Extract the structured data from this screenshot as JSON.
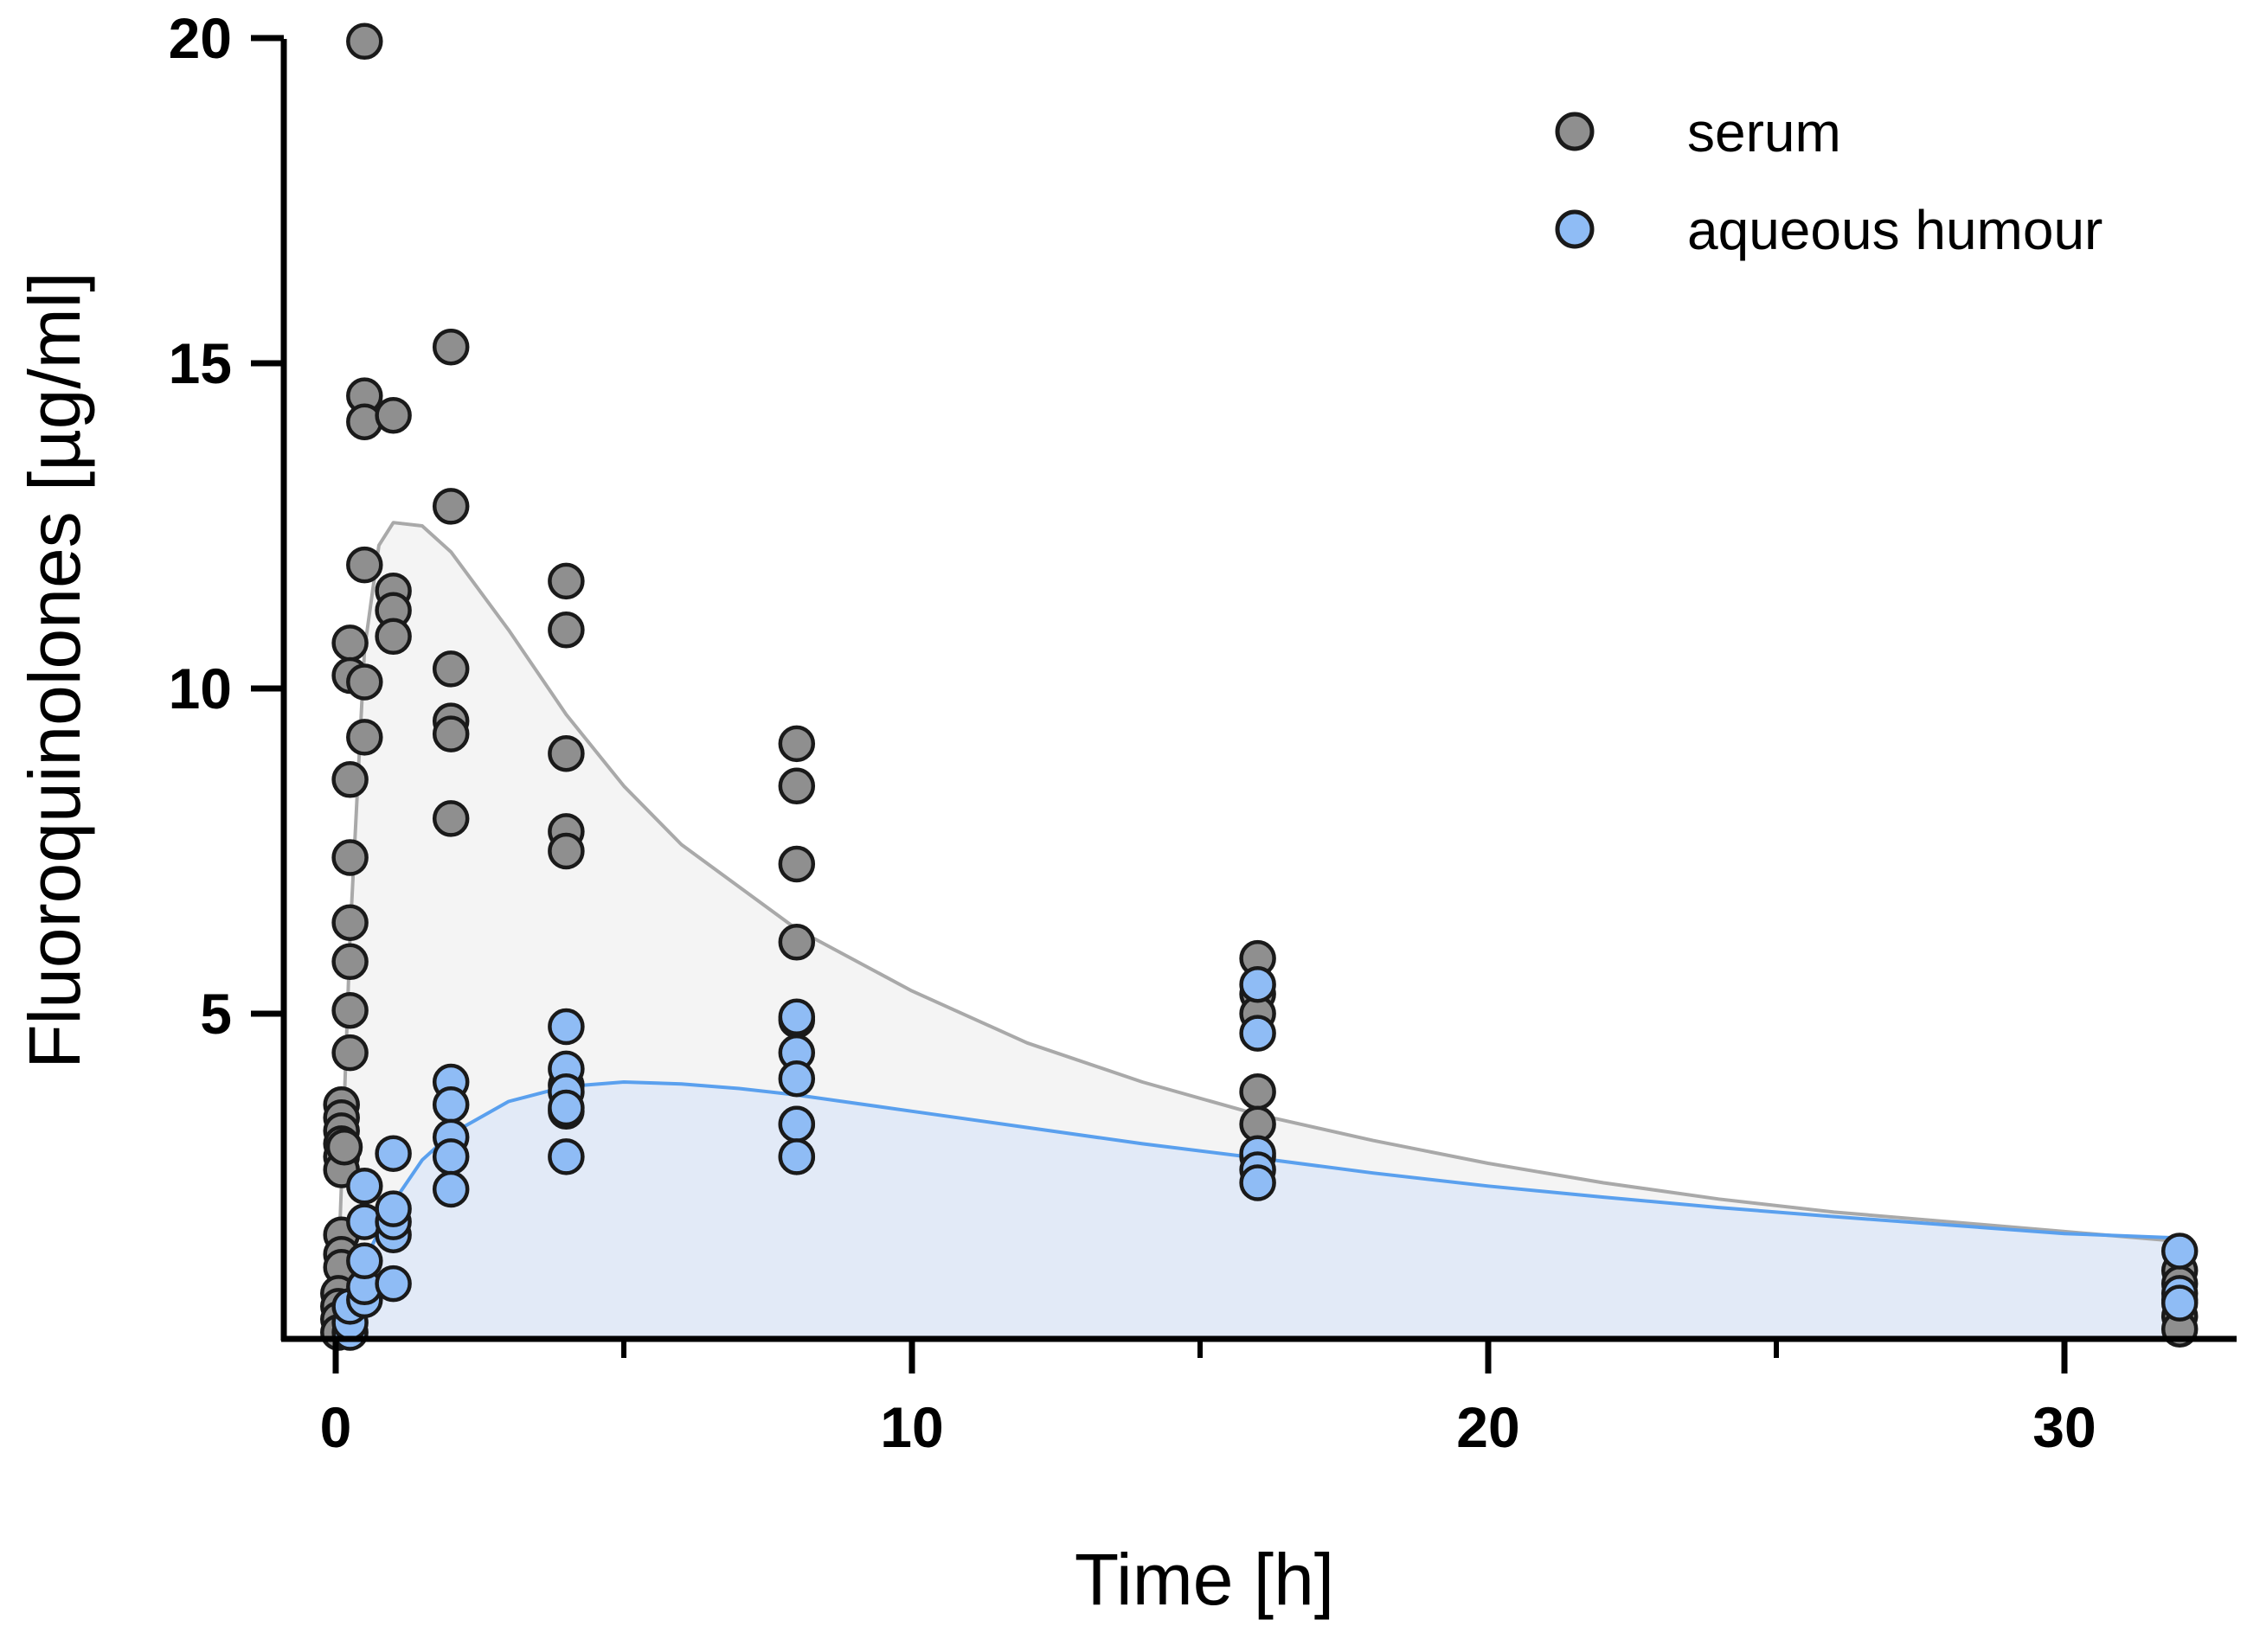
{
  "chart_data": {
    "type": "scatter",
    "title": "",
    "xlabel": "Time [h]",
    "ylabel": "Fluoroquinolones [µg/ml]",
    "xlim": [
      -1,
      33
    ],
    "ylim": [
      0,
      20
    ],
    "xticks": [
      0,
      10,
      20,
      30
    ],
    "xtick_labels": [
      "0",
      "10",
      "20",
      "30"
    ],
    "xminor": [
      5,
      15,
      25
    ],
    "yticks": [
      5,
      10,
      15,
      20
    ],
    "ytick_labels": [
      "5",
      "10",
      "15",
      "20"
    ],
    "grid": false,
    "legend_position": "top-right",
    "series": [
      {
        "name": "serum",
        "color": "#8f8f8f",
        "points": [
          [
            0.5,
            19.95
          ],
          [
            2.0,
            15.25
          ],
          [
            0.5,
            14.5
          ],
          [
            0.5,
            14.1
          ],
          [
            1.0,
            14.2
          ],
          [
            2.0,
            12.8
          ],
          [
            0.5,
            11.9
          ],
          [
            1.0,
            11.5
          ],
          [
            1.0,
            11.2
          ],
          [
            1.0,
            10.8
          ],
          [
            0.25,
            10.7
          ],
          [
            0.25,
            10.2
          ],
          [
            0.5,
            10.1
          ],
          [
            2.0,
            10.3
          ],
          [
            2.0,
            9.5
          ],
          [
            2.0,
            9.3
          ],
          [
            0.5,
            9.25
          ],
          [
            0.25,
            8.6
          ],
          [
            2.0,
            8.0
          ],
          [
            0.25,
            7.4
          ],
          [
            0.25,
            6.4
          ],
          [
            0.25,
            5.8
          ],
          [
            0.25,
            5.05
          ],
          [
            0.25,
            4.4
          ],
          [
            0.1,
            3.6
          ],
          [
            0.1,
            3.4
          ],
          [
            0.1,
            3.2
          ],
          [
            0.1,
            3.0
          ],
          [
            0.1,
            2.8
          ],
          [
            0.1,
            2.6
          ],
          [
            0.15,
            2.95
          ],
          [
            0.1,
            1.6
          ],
          [
            0.1,
            1.3
          ],
          [
            0.1,
            1.1
          ],
          [
            0.05,
            0.7
          ],
          [
            0.05,
            0.5
          ],
          [
            0.05,
            0.3
          ],
          [
            0.05,
            0.1
          ],
          [
            4.0,
            11.65
          ],
          [
            4.0,
            10.9
          ],
          [
            4.0,
            9.0
          ],
          [
            4.0,
            7.8
          ],
          [
            4.0,
            7.5
          ],
          [
            4.0,
            3.9
          ],
          [
            4.0,
            3.5
          ],
          [
            8.0,
            9.15
          ],
          [
            8.0,
            8.5
          ],
          [
            8.0,
            7.3
          ],
          [
            8.0,
            6.1
          ],
          [
            8.0,
            4.9
          ],
          [
            8.0,
            3.3
          ],
          [
            8.0,
            2.8
          ],
          [
            16.0,
            5.85
          ],
          [
            16.0,
            5.3
          ],
          [
            16.0,
            5.0
          ],
          [
            16.0,
            3.8
          ],
          [
            16.0,
            3.3
          ],
          [
            16.0,
            2.8
          ],
          [
            32.0,
            1.05
          ],
          [
            32.0,
            0.85
          ],
          [
            32.0,
            0.6
          ],
          [
            32.0,
            0.35
          ],
          [
            32.0,
            0.15
          ]
        ],
        "fit_curve": [
          [
            0.0,
            0.0
          ],
          [
            0.1,
            2.4
          ],
          [
            0.25,
            6.2
          ],
          [
            0.5,
            10.6
          ],
          [
            0.75,
            12.2
          ],
          [
            1.0,
            12.55
          ],
          [
            1.5,
            12.5
          ],
          [
            2.0,
            12.1
          ],
          [
            3.0,
            10.9
          ],
          [
            4.0,
            9.6
          ],
          [
            5.0,
            8.5
          ],
          [
            6.0,
            7.6
          ],
          [
            8.0,
            6.3
          ],
          [
            10.0,
            5.35
          ],
          [
            12.0,
            4.55
          ],
          [
            14.0,
            3.95
          ],
          [
            16.0,
            3.45
          ],
          [
            18.0,
            3.05
          ],
          [
            20.0,
            2.7
          ],
          [
            22.0,
            2.4
          ],
          [
            24.0,
            2.15
          ],
          [
            26.0,
            1.95
          ],
          [
            28.0,
            1.8
          ],
          [
            30.0,
            1.65
          ],
          [
            32.0,
            1.5
          ]
        ]
      },
      {
        "name": "aqueous humour",
        "color": "#8fbcf5",
        "points": [
          [
            0.25,
            0.1
          ],
          [
            0.25,
            0.25
          ],
          [
            0.25,
            0.5
          ],
          [
            0.5,
            0.6
          ],
          [
            0.5,
            0.8
          ],
          [
            0.5,
            1.2
          ],
          [
            0.5,
            1.8
          ],
          [
            0.5,
            2.35
          ],
          [
            1.0,
            0.85
          ],
          [
            1.0,
            1.6
          ],
          [
            1.0,
            1.8
          ],
          [
            1.0,
            2.0
          ],
          [
            1.0,
            2.85
          ],
          [
            2.0,
            3.95
          ],
          [
            2.0,
            3.6
          ],
          [
            2.0,
            3.1
          ],
          [
            2.0,
            2.8
          ],
          [
            2.0,
            2.3
          ],
          [
            4.0,
            4.8
          ],
          [
            4.0,
            4.15
          ],
          [
            4.0,
            3.8
          ],
          [
            4.0,
            3.55
          ],
          [
            4.0,
            2.8
          ],
          [
            8.0,
            4.95
          ],
          [
            8.0,
            4.4
          ],
          [
            8.0,
            4.0
          ],
          [
            8.0,
            3.3
          ],
          [
            8.0,
            2.8
          ],
          [
            16.0,
            5.45
          ],
          [
            16.0,
            4.7
          ],
          [
            16.0,
            2.85
          ],
          [
            16.0,
            2.6
          ],
          [
            16.0,
            2.4
          ],
          [
            32.0,
            1.35
          ],
          [
            32.0,
            0.7
          ],
          [
            32.0,
            0.55
          ]
        ],
        "fit_curve": [
          [
            0.0,
            0.0
          ],
          [
            0.25,
            0.6
          ],
          [
            0.5,
            1.2
          ],
          [
            1.0,
            2.1
          ],
          [
            1.5,
            2.75
          ],
          [
            2.0,
            3.15
          ],
          [
            3.0,
            3.65
          ],
          [
            4.0,
            3.88
          ],
          [
            5.0,
            3.95
          ],
          [
            6.0,
            3.92
          ],
          [
            7.0,
            3.85
          ],
          [
            8.0,
            3.75
          ],
          [
            10.0,
            3.5
          ],
          [
            12.0,
            3.25
          ],
          [
            14.0,
            3.0
          ],
          [
            16.0,
            2.78
          ],
          [
            18.0,
            2.55
          ],
          [
            20.0,
            2.35
          ],
          [
            22.0,
            2.18
          ],
          [
            24.0,
            2.02
          ],
          [
            26.0,
            1.88
          ],
          [
            28.0,
            1.75
          ],
          [
            30.0,
            1.62
          ],
          [
            32.0,
            1.55
          ]
        ]
      }
    ]
  }
}
